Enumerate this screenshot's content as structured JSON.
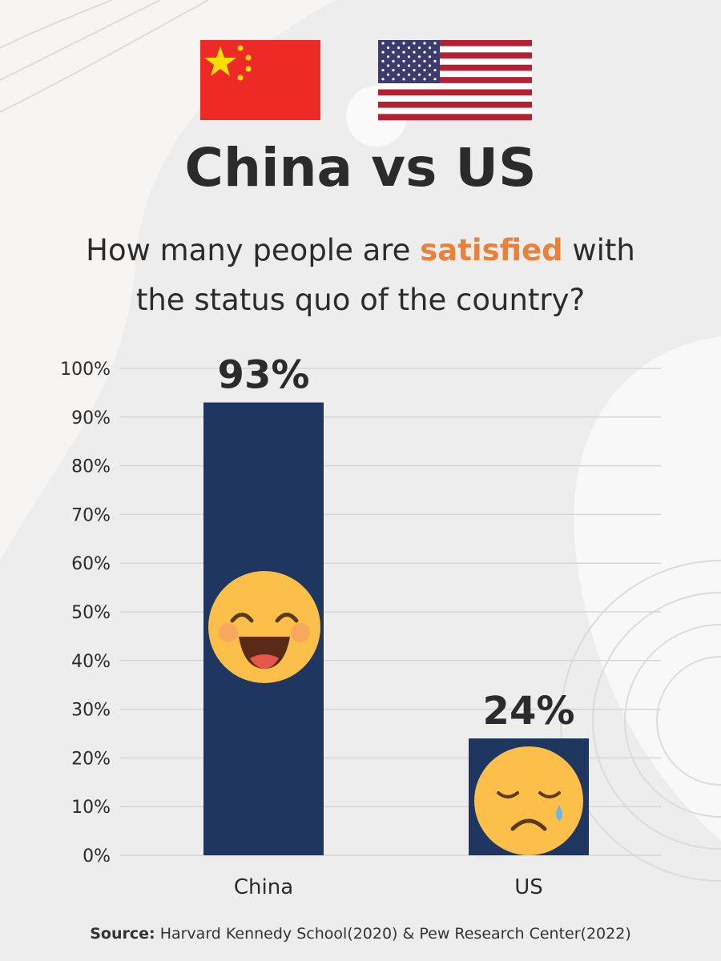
{
  "chart_data": {
    "type": "bar",
    "title": "China vs US",
    "subtitle": [
      "How many people are",
      "satisfied",
      "with",
      "the status quo of the country?"
    ],
    "categories": [
      "China",
      "US"
    ],
    "values": [
      93,
      24
    ],
    "value_labels": [
      "93%",
      "24%"
    ],
    "color": "#1f3660",
    "highlight_color": "#e8823a",
    "ylim": [
      0,
      100
    ],
    "yticks": [
      {
        "value": 0,
        "label": "0%"
      },
      {
        "value": 10,
        "label": "10%"
      },
      {
        "value": 20,
        "label": "20%"
      },
      {
        "value": 30,
        "label": "30%"
      },
      {
        "value": 40,
        "label": "40%"
      },
      {
        "value": 50,
        "label": "50%"
      },
      {
        "value": 60,
        "label": "60%"
      },
      {
        "value": 70,
        "label": "70%"
      },
      {
        "value": 80,
        "label": "80%"
      },
      {
        "value": 90,
        "label": "90%"
      },
      {
        "value": 100,
        "label": "100%"
      }
    ],
    "grid": true,
    "source_label": "Source:",
    "source": "Harvard Kennedy School(2020) & Pew Research Center(2022)"
  }
}
